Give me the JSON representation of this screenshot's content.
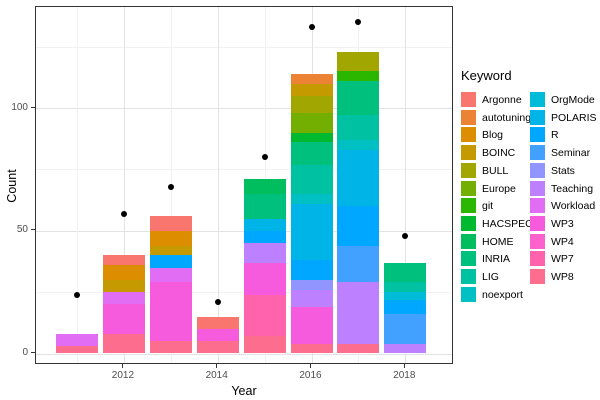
{
  "figure": {
    "background": "#FFFFFF",
    "panel_border_color": "#333333",
    "grid_major_color": "#E3E3E3",
    "grid_minor_color": "#F1F1F1",
    "tick_label_color": "#4D4D4D",
    "point_color": "#000000"
  },
  "chart_data": {
    "type": "bar",
    "subtype": "stacked-bars-with-scatter-points",
    "title": "",
    "xlabel": "Year",
    "ylabel": "Count",
    "legend_title": "Keyword",
    "legend_position": "right",
    "grid": true,
    "ylim": [
      0,
      141
    ],
    "y_major_ticks": [
      0,
      50,
      100
    ],
    "y_minor_gridlines": [
      25,
      75,
      125
    ],
    "x_major_ticks": [
      2012,
      2014,
      2016,
      2018
    ],
    "x_minor_gridlines": [
      2011,
      2013,
      2015,
      2017
    ],
    "keywords": [
      {
        "label": "Argonne",
        "color": "#F8766D"
      },
      {
        "label": "autotuning",
        "color": "#EC8334"
      },
      {
        "label": "Blog",
        "color": "#DC8D00"
      },
      {
        "label": "BOINC",
        "color": "#C59900"
      },
      {
        "label": "BULL",
        "color": "#A2A600"
      },
      {
        "label": "Europe",
        "color": "#73AF00"
      },
      {
        "label": "git",
        "color": "#2BB700"
      },
      {
        "label": "HACSPECIS",
        "color": "#00B92F"
      },
      {
        "label": "HOME",
        "color": "#00BE5E"
      },
      {
        "label": "INRIA",
        "color": "#00C07E"
      },
      {
        "label": "LIG",
        "color": "#00C1A2"
      },
      {
        "label": "noexport",
        "color": "#00C0C4"
      },
      {
        "label": "OrgMode",
        "color": "#00BCD8"
      },
      {
        "label": "POLARIS",
        "color": "#00B4E8"
      },
      {
        "label": "R",
        "color": "#00A7FF"
      },
      {
        "label": "Seminar",
        "color": "#42A1FF"
      },
      {
        "label": "Stats",
        "color": "#9095FF"
      },
      {
        "label": "Teaching",
        "color": "#BD80FF"
      },
      {
        "label": "Workload",
        "color": "#E06DF3"
      },
      {
        "label": "WP3",
        "color": "#F65BDE"
      },
      {
        "label": "WP4",
        "color": "#FC61CD"
      },
      {
        "label": "WP7",
        "color": "#FF63AC"
      },
      {
        "label": "WP8",
        "color": "#FD6D8E"
      }
    ],
    "legend_columns": [
      12,
      11
    ],
    "bars": [
      {
        "year": 2011,
        "total": 8,
        "segments": [
          {
            "keyword": "WP8",
            "value": 3
          },
          {
            "keyword": "Workload",
            "value": 5
          }
        ]
      },
      {
        "year": 2012,
        "total": 40,
        "segments": [
          {
            "keyword": "WP8",
            "value": 8
          },
          {
            "keyword": "WP3",
            "value": 12
          },
          {
            "keyword": "Workload",
            "value": 5
          },
          {
            "keyword": "BOINC",
            "value": 5
          },
          {
            "keyword": "Blog",
            "value": 6
          },
          {
            "keyword": "Argonne",
            "value": 4
          }
        ]
      },
      {
        "year": 2013,
        "total": 56,
        "segments": [
          {
            "keyword": "WP8",
            "value": 5
          },
          {
            "keyword": "WP3",
            "value": 24
          },
          {
            "keyword": "Workload",
            "value": 6
          },
          {
            "keyword": "R",
            "value": 5
          },
          {
            "keyword": "BOINC",
            "value": 4
          },
          {
            "keyword": "Blog",
            "value": 6
          },
          {
            "keyword": "Argonne",
            "value": 6
          }
        ]
      },
      {
        "year": 2014,
        "total": 15,
        "segments": [
          {
            "keyword": "WP8",
            "value": 5
          },
          {
            "keyword": "WP3",
            "value": 5
          },
          {
            "keyword": "Argonne",
            "value": 5
          }
        ]
      },
      {
        "year": 2015,
        "total": 71,
        "segments": [
          {
            "keyword": "WP8",
            "value": 7
          },
          {
            "keyword": "WP7",
            "value": 17
          },
          {
            "keyword": "WP3",
            "value": 13
          },
          {
            "keyword": "Teaching",
            "value": 8
          },
          {
            "keyword": "R",
            "value": 5
          },
          {
            "keyword": "POLARIS",
            "value": 5
          },
          {
            "keyword": "INRIA",
            "value": 10
          },
          {
            "keyword": "HOME",
            "value": 6
          }
        ]
      },
      {
        "year": 2016,
        "total": 114,
        "segments": [
          {
            "keyword": "WP8",
            "value": 4
          },
          {
            "keyword": "WP3",
            "value": 15
          },
          {
            "keyword": "Teaching",
            "value": 7
          },
          {
            "keyword": "Stats",
            "value": 4
          },
          {
            "keyword": "R",
            "value": 8
          },
          {
            "keyword": "POLARIS",
            "value": 23
          },
          {
            "keyword": "noexport",
            "value": 4
          },
          {
            "keyword": "LIG",
            "value": 12
          },
          {
            "keyword": "INRIA",
            "value": 9
          },
          {
            "keyword": "HACSPECIS",
            "value": 4
          },
          {
            "keyword": "Europe",
            "value": 8
          },
          {
            "keyword": "BULL",
            "value": 7
          },
          {
            "keyword": "BOINC",
            "value": 5
          },
          {
            "keyword": "autotuning",
            "value": 4
          }
        ]
      },
      {
        "year": 2017,
        "total": 123,
        "segments": [
          {
            "keyword": "WP8",
            "value": 4
          },
          {
            "keyword": "Teaching",
            "value": 25
          },
          {
            "keyword": "Seminar",
            "value": 15
          },
          {
            "keyword": "R",
            "value": 16
          },
          {
            "keyword": "POLARIS",
            "value": 23
          },
          {
            "keyword": "noexport",
            "value": 4
          },
          {
            "keyword": "LIG",
            "value": 10
          },
          {
            "keyword": "INRIA",
            "value": 14
          },
          {
            "keyword": "git",
            "value": 4
          },
          {
            "keyword": "BULL",
            "value": 8
          }
        ]
      },
      {
        "year": 2018,
        "total": 37,
        "segments": [
          {
            "keyword": "Teaching",
            "value": 4
          },
          {
            "keyword": "Seminar",
            "value": 12
          },
          {
            "keyword": "R",
            "value": 6
          },
          {
            "keyword": "OrgMode",
            "value": 3
          },
          {
            "keyword": "LIG",
            "value": 4
          },
          {
            "keyword": "INRIA",
            "value": 8
          }
        ]
      }
    ],
    "points": [
      {
        "year": 2011,
        "value": 24
      },
      {
        "year": 2012,
        "value": 57
      },
      {
        "year": 2013,
        "value": 68
      },
      {
        "year": 2014,
        "value": 21
      },
      {
        "year": 2015,
        "value": 80
      },
      {
        "year": 2016,
        "value": 133
      },
      {
        "year": 2017,
        "value": 135
      },
      {
        "year": 2018,
        "value": 48
      }
    ]
  }
}
